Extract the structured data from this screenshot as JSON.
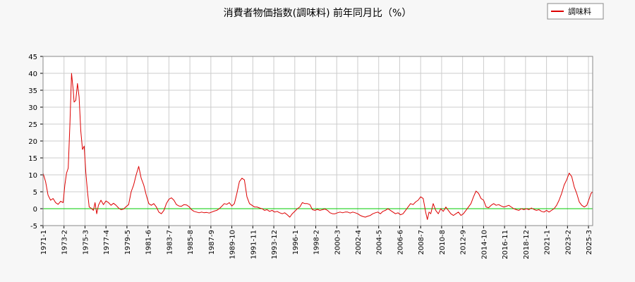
{
  "chart_data": {
    "type": "line",
    "title": "消費者物価指数(調味料) 前年同月比（%）",
    "xlabel": "",
    "ylabel": "",
    "ylim": [
      -5,
      45
    ],
    "yticks": [
      -5,
      0,
      5,
      10,
      15,
      20,
      25,
      30,
      35,
      40,
      45
    ],
    "x_range": [
      "1971-01",
      "2025-08"
    ],
    "xtick_labels": [
      "1971-1",
      "1973-2",
      "1975-3",
      "1977-4",
      "1979-5",
      "1981-6",
      "1983-7",
      "1985-8",
      "1987-9",
      "1989-10",
      "1991-11",
      "1993-12",
      "1996-1",
      "1998-2",
      "2000-3",
      "2002-4",
      "2004-5",
      "2006-6",
      "2008-7",
      "2010-8",
      "2012-9",
      "2014-10",
      "2016-11",
      "2018-12",
      "2021-1",
      "2023-2",
      "2025-3"
    ],
    "grid": true,
    "legend_position": "top-right",
    "zero_line": {
      "value": 0,
      "color": "#00cc00"
    },
    "series": [
      {
        "name": "調味料",
        "color": "#dd0000",
        "points": [
          [
            "1971-01",
            10.5
          ],
          [
            "1971-04",
            8.0
          ],
          [
            "1971-07",
            4.0
          ],
          [
            "1971-10",
            2.5
          ],
          [
            "1972-01",
            3.0
          ],
          [
            "1972-04",
            1.8
          ],
          [
            "1972-07",
            1.3
          ],
          [
            "1972-10",
            2.2
          ],
          [
            "1973-01",
            1.8
          ],
          [
            "1973-03",
            7.0
          ],
          [
            "1973-05",
            10.5
          ],
          [
            "1973-07",
            12.0
          ],
          [
            "1973-09",
            25.0
          ],
          [
            "1973-11",
            40.0
          ],
          [
            "1974-01",
            35.0
          ],
          [
            "1974-02",
            31.5
          ],
          [
            "1974-04",
            32.0
          ],
          [
            "1974-06",
            37.0
          ],
          [
            "1974-08",
            33.0
          ],
          [
            "1974-10",
            23.0
          ],
          [
            "1974-12",
            17.5
          ],
          [
            "1975-02",
            18.5
          ],
          [
            "1975-04",
            10.5
          ],
          [
            "1975-06",
            5.0
          ],
          [
            "1975-08",
            0.5
          ],
          [
            "1975-10",
            0.2
          ],
          [
            "1976-01",
            -0.5
          ],
          [
            "1976-03",
            1.8
          ],
          [
            "1976-05",
            -1.5
          ],
          [
            "1976-07",
            1.0
          ],
          [
            "1976-10",
            2.5
          ],
          [
            "1977-01",
            1.2
          ],
          [
            "1977-04",
            2.3
          ],
          [
            "1977-07",
            1.8
          ],
          [
            "1977-10",
            1.0
          ],
          [
            "1978-01",
            1.6
          ],
          [
            "1978-04",
            1.0
          ],
          [
            "1978-07",
            0.2
          ],
          [
            "1978-10",
            -0.3
          ],
          [
            "1979-01",
            -0.1
          ],
          [
            "1979-04",
            0.6
          ],
          [
            "1979-07",
            1.2
          ],
          [
            "1979-10",
            5.0
          ],
          [
            "1980-01",
            7.0
          ],
          [
            "1980-04",
            10.0
          ],
          [
            "1980-07",
            12.5
          ],
          [
            "1980-10",
            9.0
          ],
          [
            "1981-01",
            7.0
          ],
          [
            "1981-04",
            4.0
          ],
          [
            "1981-07",
            1.5
          ],
          [
            "1981-10",
            1.0
          ],
          [
            "1982-01",
            1.5
          ],
          [
            "1982-04",
            0.5
          ],
          [
            "1982-07",
            -1.0
          ],
          [
            "1982-10",
            -1.5
          ],
          [
            "1983-01",
            -0.5
          ],
          [
            "1983-04",
            1.5
          ],
          [
            "1983-07",
            2.8
          ],
          [
            "1983-10",
            3.2
          ],
          [
            "1984-01",
            2.5
          ],
          [
            "1984-04",
            1.2
          ],
          [
            "1984-07",
            0.8
          ],
          [
            "1984-10",
            0.7
          ],
          [
            "1985-01",
            1.2
          ],
          [
            "1985-04",
            1.1
          ],
          [
            "1985-07",
            0.6
          ],
          [
            "1985-10",
            -0.3
          ],
          [
            "1986-01",
            -0.8
          ],
          [
            "1986-04",
            -1.0
          ],
          [
            "1986-07",
            -1.2
          ],
          [
            "1986-10",
            -1.0
          ],
          [
            "1987-01",
            -1.2
          ],
          [
            "1987-04",
            -1.1
          ],
          [
            "1987-07",
            -1.3
          ],
          [
            "1987-10",
            -1.0
          ],
          [
            "1988-01",
            -0.7
          ],
          [
            "1988-04",
            -0.5
          ],
          [
            "1988-07",
            0.0
          ],
          [
            "1988-10",
            0.7
          ],
          [
            "1989-01",
            1.5
          ],
          [
            "1989-04",
            1.3
          ],
          [
            "1989-07",
            1.8
          ],
          [
            "1989-10",
            0.8
          ],
          [
            "1990-01",
            1.5
          ],
          [
            "1990-04",
            4.5
          ],
          [
            "1990-07",
            8.0
          ],
          [
            "1990-10",
            9.0
          ],
          [
            "1991-01",
            8.5
          ],
          [
            "1991-04",
            3.5
          ],
          [
            "1991-07",
            1.5
          ],
          [
            "1991-10",
            1.0
          ],
          [
            "1992-01",
            0.5
          ],
          [
            "1992-04",
            0.5
          ],
          [
            "1992-07",
            0.2
          ],
          [
            "1992-10",
            0.0
          ],
          [
            "1993-01",
            -0.5
          ],
          [
            "1993-04",
            -0.3
          ],
          [
            "1993-07",
            -0.8
          ],
          [
            "1993-10",
            -0.5
          ],
          [
            "1994-01",
            -1.0
          ],
          [
            "1994-04",
            -0.8
          ],
          [
            "1994-07",
            -1.2
          ],
          [
            "1994-10",
            -1.5
          ],
          [
            "1995-01",
            -1.2
          ],
          [
            "1995-04",
            -1.8
          ],
          [
            "1995-07",
            -2.5
          ],
          [
            "1995-10",
            -1.5
          ],
          [
            "1996-01",
            -0.8
          ],
          [
            "1996-04",
            0.0
          ],
          [
            "1996-07",
            0.5
          ],
          [
            "1996-10",
            1.8
          ],
          [
            "1997-01",
            1.5
          ],
          [
            "1997-04",
            1.5
          ],
          [
            "1997-07",
            1.2
          ],
          [
            "1997-10",
            -0.3
          ],
          [
            "1998-01",
            -0.5
          ],
          [
            "1998-04",
            -0.2
          ],
          [
            "1998-07",
            -0.5
          ],
          [
            "1998-10",
            -0.3
          ],
          [
            "1999-01",
            -0.1
          ],
          [
            "1999-04",
            -0.5
          ],
          [
            "1999-07",
            -1.2
          ],
          [
            "1999-10",
            -1.5
          ],
          [
            "2000-01",
            -1.5
          ],
          [
            "2000-04",
            -1.2
          ],
          [
            "2000-07",
            -1.0
          ],
          [
            "2000-10",
            -1.2
          ],
          [
            "2001-01",
            -1.0
          ],
          [
            "2001-04",
            -1.0
          ],
          [
            "2001-07",
            -1.3
          ],
          [
            "2001-10",
            -1.0
          ],
          [
            "2002-01",
            -1.2
          ],
          [
            "2002-04",
            -1.5
          ],
          [
            "2002-07",
            -2.0
          ],
          [
            "2002-10",
            -2.3
          ],
          [
            "2003-01",
            -2.5
          ],
          [
            "2003-04",
            -2.2
          ],
          [
            "2003-07",
            -2.0
          ],
          [
            "2003-10",
            -1.5
          ],
          [
            "2004-01",
            -1.2
          ],
          [
            "2004-04",
            -1.0
          ],
          [
            "2004-07",
            -1.5
          ],
          [
            "2004-10",
            -0.8
          ],
          [
            "2005-01",
            -0.5
          ],
          [
            "2005-04",
            0.0
          ],
          [
            "2005-07",
            -0.5
          ],
          [
            "2005-10",
            -1.0
          ],
          [
            "2006-01",
            -1.5
          ],
          [
            "2006-04",
            -1.2
          ],
          [
            "2006-07",
            -1.8
          ],
          [
            "2006-10",
            -1.5
          ],
          [
            "2007-01",
            -0.5
          ],
          [
            "2007-04",
            0.5
          ],
          [
            "2007-07",
            1.5
          ],
          [
            "2007-10",
            1.2
          ],
          [
            "2008-01",
            2.0
          ],
          [
            "2008-04",
            2.5
          ],
          [
            "2008-07",
            3.5
          ],
          [
            "2008-10",
            3.0
          ],
          [
            "2009-01",
            -1.0
          ],
          [
            "2009-03",
            -3.2
          ],
          [
            "2009-05",
            -1.0
          ],
          [
            "2009-07",
            -1.5
          ],
          [
            "2009-10",
            1.5
          ],
          [
            "2010-01",
            -0.5
          ],
          [
            "2010-04",
            -1.5
          ],
          [
            "2010-07",
            0.0
          ],
          [
            "2010-10",
            -0.8
          ],
          [
            "2011-01",
            0.5
          ],
          [
            "2011-04",
            -0.5
          ],
          [
            "2011-07",
            -1.5
          ],
          [
            "2011-10",
            -2.0
          ],
          [
            "2012-01",
            -1.5
          ],
          [
            "2012-04",
            -1.0
          ],
          [
            "2012-07",
            -2.0
          ],
          [
            "2012-10",
            -1.5
          ],
          [
            "2013-01",
            -0.5
          ],
          [
            "2013-04",
            0.5
          ],
          [
            "2013-07",
            1.5
          ],
          [
            "2013-10",
            3.5
          ],
          [
            "2014-01",
            5.2
          ],
          [
            "2014-04",
            4.5
          ],
          [
            "2014-07",
            3.0
          ],
          [
            "2014-10",
            2.5
          ],
          [
            "2015-01",
            0.5
          ],
          [
            "2015-04",
            0.3
          ],
          [
            "2015-07",
            1.0
          ],
          [
            "2015-10",
            1.5
          ],
          [
            "2016-01",
            1.0
          ],
          [
            "2016-04",
            1.2
          ],
          [
            "2016-07",
            0.8
          ],
          [
            "2016-10",
            0.5
          ],
          [
            "2017-01",
            0.7
          ],
          [
            "2017-04",
            1.0
          ],
          [
            "2017-07",
            0.5
          ],
          [
            "2017-10",
            0.0
          ],
          [
            "2018-01",
            -0.3
          ],
          [
            "2018-04",
            -0.5
          ],
          [
            "2018-07",
            0.0
          ],
          [
            "2018-10",
            -0.3
          ],
          [
            "2019-01",
            0.0
          ],
          [
            "2019-04",
            -0.3
          ],
          [
            "2019-07",
            0.2
          ],
          [
            "2019-10",
            -0.2
          ],
          [
            "2020-01",
            -0.5
          ],
          [
            "2020-04",
            -0.3
          ],
          [
            "2020-07",
            -0.8
          ],
          [
            "2020-10",
            -1.0
          ],
          [
            "2021-01",
            -0.5
          ],
          [
            "2021-04",
            -1.0
          ],
          [
            "2021-07",
            -0.5
          ],
          [
            "2021-10",
            0.0
          ],
          [
            "2022-01",
            1.0
          ],
          [
            "2022-04",
            2.5
          ],
          [
            "2022-07",
            4.5
          ],
          [
            "2022-10",
            7.0
          ],
          [
            "2023-01",
            8.5
          ],
          [
            "2023-04",
            10.5
          ],
          [
            "2023-07",
            9.5
          ],
          [
            "2023-10",
            6.5
          ],
          [
            "2024-01",
            4.5
          ],
          [
            "2024-04",
            2.0
          ],
          [
            "2024-07",
            1.0
          ],
          [
            "2024-10",
            0.5
          ],
          [
            "2025-01",
            1.0
          ],
          [
            "2025-04",
            3.0
          ],
          [
            "2025-06",
            4.5
          ],
          [
            "2025-08",
            5.0
          ]
        ]
      }
    ]
  }
}
